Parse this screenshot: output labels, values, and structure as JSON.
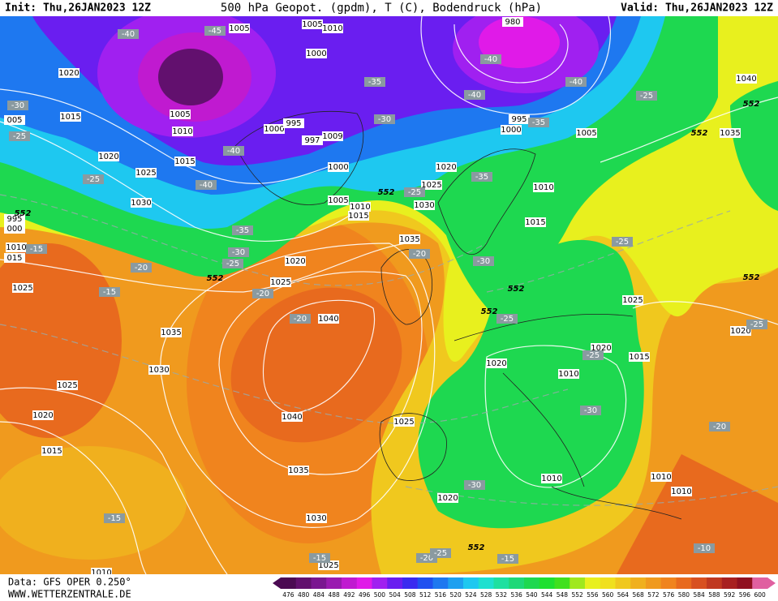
{
  "header": {
    "init": "Init: Thu,26JAN2023 12Z",
    "title": "500 hPa Geopot. (gpdm), T (C), Bodendruck (hPa)",
    "valid": "Valid: Thu,26JAN2023 12Z"
  },
  "footer": {
    "data": "Data: GFS OPER 0.250°",
    "site": "WWW.WETTERZENTRALE.DE"
  },
  "scale": {
    "labels": [
      476,
      480,
      484,
      488,
      492,
      496,
      500,
      504,
      508,
      512,
      516,
      520,
      524,
      528,
      532,
      536,
      540,
      544,
      548,
      552,
      556,
      560,
      564,
      568,
      572,
      576,
      580,
      584,
      588,
      592,
      596,
      600
    ],
    "colors": [
      "#4b0a52",
      "#62106e",
      "#7a1690",
      "#9a1ab0",
      "#c01ad0",
      "#e01ae8",
      "#a020f0",
      "#6a1ef0",
      "#3a2af0",
      "#2050f0",
      "#1e78f0",
      "#1ea0f0",
      "#1ec8f0",
      "#1ee0d0",
      "#1ee0a0",
      "#1ed878",
      "#1ed850",
      "#1ee030",
      "#40e01e",
      "#a0e81e",
      "#e8f01e",
      "#f0e01e",
      "#f0c81e",
      "#f0b01e",
      "#f09a1e",
      "#f0841e",
      "#e86a1e",
      "#d85020",
      "#c03820",
      "#a82020",
      "#901020",
      "#e060a0"
    ]
  },
  "map": {
    "isobars": [
      "1005",
      "1010",
      "1005",
      "1000",
      "980",
      "1020",
      "1015",
      "005",
      "1005",
      "1010",
      "1000",
      "995",
      "995",
      "1000",
      "1005",
      "1015",
      "1020",
      "1025",
      "1030",
      "1040",
      "1035",
      "1020",
      "1025",
      "1030",
      "1005",
      "1010",
      "1015",
      "1000",
      "1010",
      "1015",
      "1035",
      "1020",
      "1025",
      "1040",
      "1035",
      "1030",
      "1025",
      "1020",
      "1015",
      "1040",
      "1035",
      "1030",
      "1025",
      "1010",
      "1025",
      "1020",
      "1010",
      "1010",
      "1010",
      "1020",
      "1010",
      "1020",
      "1015",
      "1025",
      "1020",
      "1025",
      "995",
      "000",
      "1010",
      "015",
      "997",
      "1009"
    ],
    "temperatures": [
      "-40",
      "-45",
      "-40",
      "-40",
      "-35",
      "-40",
      "-25",
      "-30",
      "-25",
      "-30",
      "-35",
      "-40",
      "-40",
      "-25",
      "-35",
      "-25",
      "-35",
      "-30",
      "-25",
      "-20",
      "-15",
      "-15",
      "-20",
      "-20",
      "-30",
      "-25",
      "-25",
      "-20",
      "-25",
      "-30",
      "-20",
      "-25",
      "-30",
      "-15",
      "-15",
      "-20",
      "-25",
      "-15",
      "-10"
    ],
    "geopotential": [
      "552",
      "552",
      "552",
      "552",
      "552",
      "552",
      "552",
      "552",
      "552"
    ]
  }
}
